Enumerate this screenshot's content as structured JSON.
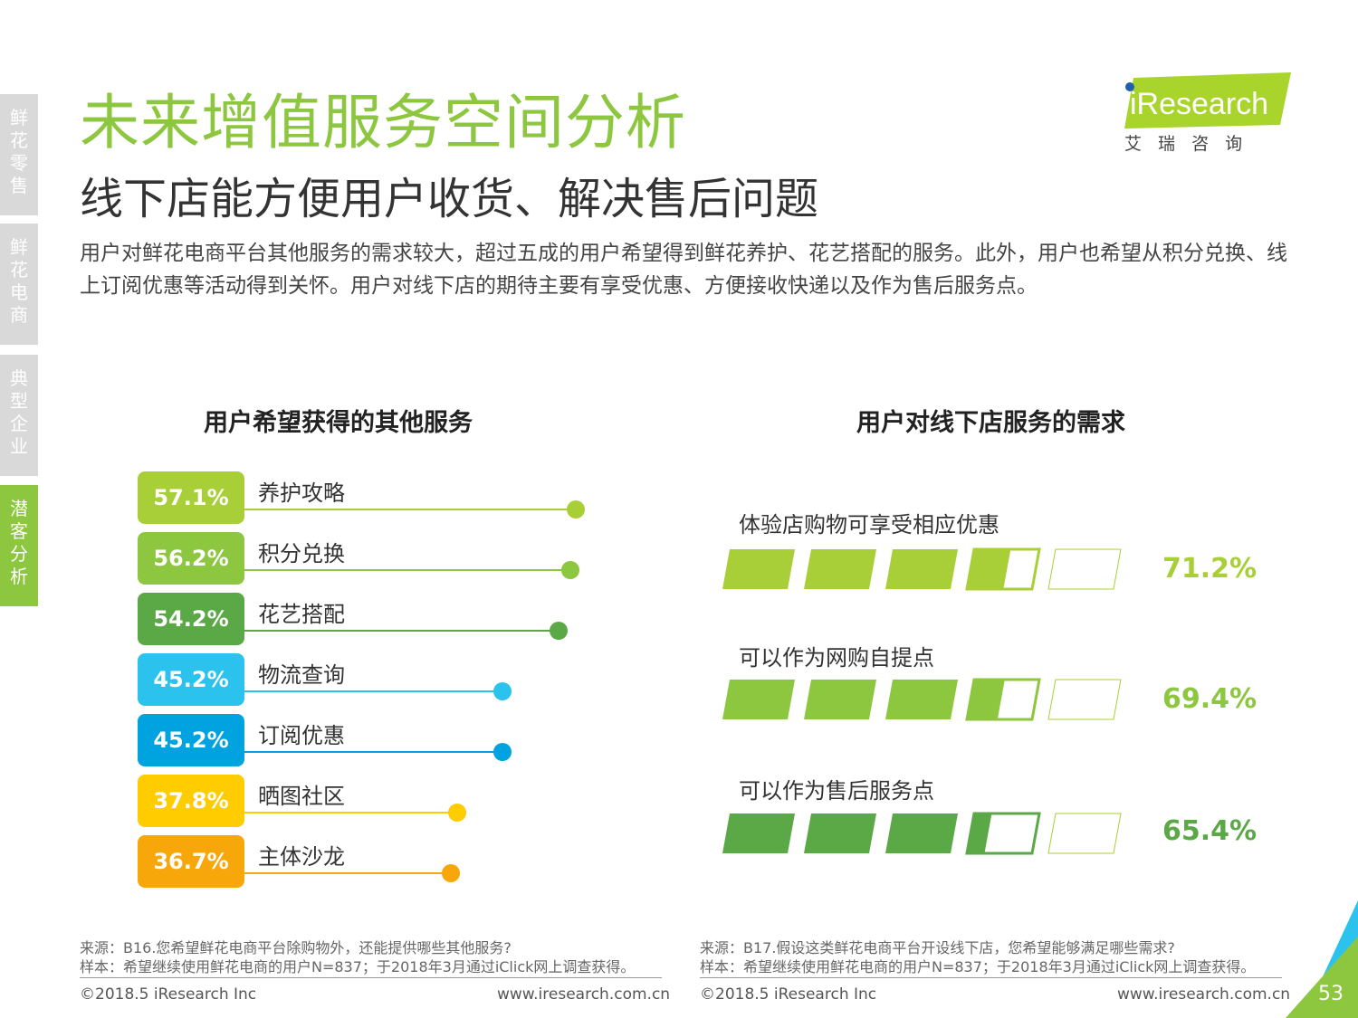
{
  "sidebar": {
    "tabs": [
      {
        "chars": [
          "鲜",
          "花",
          "零",
          "售"
        ],
        "active": false
      },
      {
        "chars": [
          "鲜",
          "花",
          "电",
          "商"
        ],
        "active": false
      },
      {
        "chars": [
          "典",
          "型",
          "企",
          "业"
        ],
        "active": false
      },
      {
        "chars": [
          "潜",
          "客",
          "分",
          "析"
        ],
        "active": true
      }
    ]
  },
  "header": {
    "title": "未来增值服务空间分析",
    "subtitle": "线下店能方便用户收货、解决售后问题",
    "intro": "用户对鲜花电商平台其他服务的需求较大，超过五成的用户希望得到鲜花养护、花艺搭配的服务。此外，用户也希望从积分兑换、线上订阅优惠等活动得到关怀。用户对线下店的期待主要有享受优惠、方便接收快递以及作为售后服务点。"
  },
  "logo": {
    "brand": "iResearch",
    "cn": "艾 瑞 咨 询"
  },
  "chart_data": [
    {
      "type": "bar",
      "title": "用户希望获得的其他服务",
      "categories": [
        "养护攻略",
        "积分兑换",
        "花艺搭配",
        "物流查询",
        "订阅优惠",
        "晒图社区",
        "主体沙龙"
      ],
      "values": [
        57.1,
        56.2,
        54.2,
        45.2,
        45.2,
        37.8,
        36.7
      ],
      "value_labels": [
        "57.1%",
        "56.2%",
        "54.2%",
        "45.2%",
        "45.2%",
        "37.8%",
        "36.7%"
      ],
      "colors": [
        "#a8cf38",
        "#8dc63f",
        "#5aa846",
        "#2bc3ee",
        "#00a3e0",
        "#ffcc00",
        "#f7a70a"
      ],
      "unit": "%"
    },
    {
      "type": "bar",
      "title": "用户对线下店服务的需求",
      "categories": [
        "体验店购物可享受相应优惠",
        "可以作为网购自提点",
        "可以作为售后服务点"
      ],
      "values": [
        71.2,
        69.4,
        65.4
      ],
      "value_labels": [
        "71.2%",
        "69.4%",
        "65.4%"
      ],
      "colors": [
        "#a8cf38",
        "#8dc63f",
        "#5aa846"
      ],
      "unit": "%",
      "max": 100
    }
  ],
  "footer": {
    "left_source": "来源：B16.您希望鲜花电商平台除购物外，还能提供哪些其他服务?",
    "left_sample": "样本：希望继续使用鲜花电商的用户N=837；于2018年3月通过iClick网上调查获得。",
    "right_source": "来源：B17.假设这类鲜花电商平台开设线下店，您希望能够满足哪些需求?",
    "right_sample": "样本：希望继续使用鲜花电商的用户N=837；于2018年3月通过iClick网上调查获得。",
    "copyright": "©2018.5 iResearch Inc",
    "website": "www.iresearch.com.cn",
    "page": "53"
  }
}
